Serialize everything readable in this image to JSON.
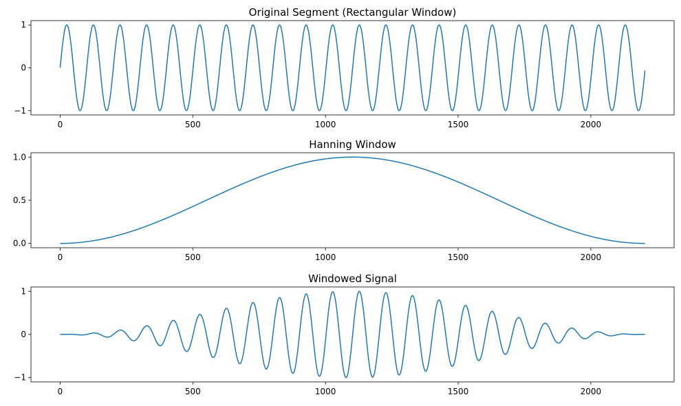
{
  "chart_data": [
    {
      "type": "line",
      "title": "Original Segment (Rectangular Window)",
      "series": [
        {
          "name": "sine segment",
          "function": "sin(2*pi*cycles*n/N)",
          "color": "#1f77b4"
        }
      ],
      "n_samples": 2205,
      "cycles": 22,
      "xlim": [
        -110,
        2314
      ],
      "ylim": [
        -1.1,
        1.1
      ],
      "xticks": [
        0,
        500,
        1000,
        1500,
        2000
      ],
      "yticks": [
        -1,
        0,
        1
      ],
      "ytick_labels": [
        "−1",
        "0",
        "1"
      ],
      "grid": false
    },
    {
      "type": "line",
      "title": "Hanning Window",
      "series": [
        {
          "name": "hanning",
          "function": "0.5-0.5*cos(2*pi*n/(N-1))",
          "color": "#1f77b4"
        }
      ],
      "n_samples": 2205,
      "xlim": [
        -110,
        2314
      ],
      "ylim": [
        -0.05,
        1.05
      ],
      "xticks": [
        0,
        500,
        1000,
        1500,
        2000
      ],
      "yticks": [
        0,
        0.5,
        1
      ],
      "ytick_labels": [
        "0.0",
        "0.5",
        "1.0"
      ],
      "grid": false
    },
    {
      "type": "line",
      "title": "Windowed Signal",
      "series": [
        {
          "name": "windowed",
          "function": "sine * hanning",
          "color": "#1f77b4"
        }
      ],
      "n_samples": 2205,
      "cycles": 22,
      "xlim": [
        -110,
        2314
      ],
      "ylim": [
        -1.1,
        1.1
      ],
      "xticks": [
        0,
        500,
        1000,
        1500,
        2000
      ],
      "yticks": [
        -1,
        0,
        1
      ],
      "ytick_labels": [
        "−1",
        "0",
        "1"
      ],
      "grid": false
    }
  ]
}
